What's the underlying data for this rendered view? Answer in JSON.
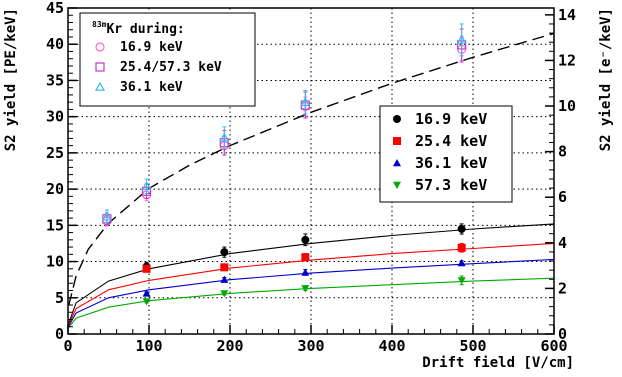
{
  "chart_data": {
    "type": "scatter",
    "xlabel": "Drift field [V/cm]",
    "ylabel_left": "S2 yield [PE/keV]",
    "ylabel_right": "S2 yield [e⁻/keV]",
    "xlim": [
      0,
      600
    ],
    "ylim_left": [
      0,
      45
    ],
    "ylim_right": [
      0,
      14.3
    ],
    "x_ticks": [
      0,
      100,
      200,
      300,
      400,
      500,
      600
    ],
    "y_ticks_left": [
      0,
      5,
      10,
      15,
      20,
      25,
      30,
      35,
      40,
      45
    ],
    "y_ticks_right": [
      0,
      2,
      4,
      6,
      8,
      10,
      12,
      14
    ],
    "grid": true,
    "legend_top_left": {
      "title_prefix": "83m",
      "title": "Kr during:",
      "entries": [
        {
          "label": "16.9 keV",
          "marker": "open-circle",
          "color": "#ff66cc"
        },
        {
          "label": "25.4/57.3 keV",
          "marker": "open-square",
          "color": "#cc33cc"
        },
        {
          "label": "36.1 keV",
          "marker": "open-triangle",
          "color": "#33bbee"
        }
      ]
    },
    "legend_right": {
      "entries": [
        {
          "label": "16.9 keV",
          "marker": "filled-circle",
          "color": "#000000"
        },
        {
          "label": "25.4 keV",
          "marker": "filled-square",
          "color": "#ff0000"
        },
        {
          "label": "36.1 keV",
          "marker": "filled-triangle-up",
          "color": "#0000cc"
        },
        {
          "label": "57.3 keV",
          "marker": "filled-triangle-down",
          "color": "#00aa00"
        }
      ]
    },
    "series": [
      {
        "marker": "filled-circle",
        "color": "#000000",
        "x": [
          97,
          193,
          293,
          486
        ],
        "y": [
          9.3,
          11.3,
          13.0,
          14.5
        ],
        "yerr": [
          0.6,
          0.7,
          0.8,
          0.7
        ],
        "fit": {
          "style": "solid",
          "points": [
            [
              1,
              1.5
            ],
            [
              10,
              4.3
            ],
            [
              50,
              7.3
            ],
            [
              100,
              9.0
            ],
            [
              200,
              11.1
            ],
            [
              300,
              12.5
            ],
            [
              400,
              13.6
            ],
            [
              500,
              14.5
            ],
            [
              600,
              15.2
            ]
          ]
        }
      },
      {
        "marker": "filled-square",
        "color": "#ff0000",
        "x": [
          97,
          193,
          293,
          486
        ],
        "y": [
          9.0,
          9.2,
          10.6,
          11.9
        ],
        "yerr": [
          0.3,
          0.4,
          0.5,
          0.6
        ],
        "fit": {
          "style": "solid",
          "points": [
            [
              1,
              1.3
            ],
            [
              10,
              3.5
            ],
            [
              50,
              6.1
            ],
            [
              100,
              7.4
            ],
            [
              200,
              9.1
            ],
            [
              300,
              10.2
            ],
            [
              400,
              11.1
            ],
            [
              500,
              11.8
            ],
            [
              600,
              12.5
            ]
          ]
        }
      },
      {
        "marker": "filled-triangle-up",
        "color": "#0000cc",
        "x": [
          97,
          193,
          293,
          486
        ],
        "y": [
          5.6,
          7.5,
          8.5,
          9.8
        ],
        "yerr": [
          0.2,
          0.3,
          0.4,
          0.3
        ],
        "fit": {
          "style": "solid",
          "points": [
            [
              1,
              1.1
            ],
            [
              10,
              2.9
            ],
            [
              50,
              5.0
            ],
            [
              100,
              6.1
            ],
            [
              200,
              7.5
            ],
            [
              300,
              8.4
            ],
            [
              400,
              9.1
            ],
            [
              500,
              9.7
            ],
            [
              600,
              10.3
            ]
          ]
        }
      },
      {
        "marker": "filled-triangle-down",
        "color": "#00aa00",
        "x": [
          97,
          193,
          293,
          486
        ],
        "y": [
          4.5,
          5.6,
          6.3,
          7.4
        ],
        "yerr": [
          0.2,
          0.2,
          0.3,
          0.6
        ],
        "fit": {
          "style": "solid",
          "points": [
            [
              1,
              0.9
            ],
            [
              10,
              2.2
            ],
            [
              50,
              3.7
            ],
            [
              100,
              4.6
            ],
            [
              200,
              5.6
            ],
            [
              300,
              6.3
            ],
            [
              400,
              6.8
            ],
            [
              500,
              7.3
            ],
            [
              600,
              7.7
            ]
          ]
        }
      },
      {
        "marker": "open-circle",
        "color": "#ff66cc",
        "x": [
          48,
          97,
          193,
          293,
          486
        ],
        "y": [
          15.6,
          19.2,
          26.0,
          31.4,
          39.3
        ],
        "yerr": [
          0.7,
          0.8,
          1.3,
          1.3,
          1.8
        ]
      },
      {
        "marker": "open-square",
        "color": "#cc33cc",
        "x": [
          48,
          97,
          193,
          293,
          486
        ],
        "y": [
          15.9,
          19.7,
          26.4,
          31.6,
          39.9
        ],
        "yerr": [
          0.8,
          1.0,
          1.7,
          1.8,
          2.2
        ]
      },
      {
        "marker": "open-triangle",
        "color": "#33bbee",
        "x": [
          48,
          97,
          193,
          293,
          486
        ],
        "y": [
          16.2,
          20.4,
          27.1,
          32.0,
          40.6
        ],
        "yerr": [
          0.9,
          1.0,
          1.5,
          1.6,
          2.2
        ]
      },
      {
        "marker": "none",
        "color": "#000000",
        "fit": {
          "style": "dashed",
          "points": [
            [
              1,
              4.0
            ],
            [
              10,
              8.0
            ],
            [
              25,
              11.7
            ],
            [
              50,
              15.3
            ],
            [
              100,
              20.1
            ],
            [
              150,
              23.3
            ],
            [
              200,
              26.0
            ],
            [
              300,
              30.6
            ],
            [
              400,
              34.6
            ],
            [
              500,
              38.2
            ],
            [
              600,
              41.5
            ]
          ]
        }
      }
    ]
  }
}
